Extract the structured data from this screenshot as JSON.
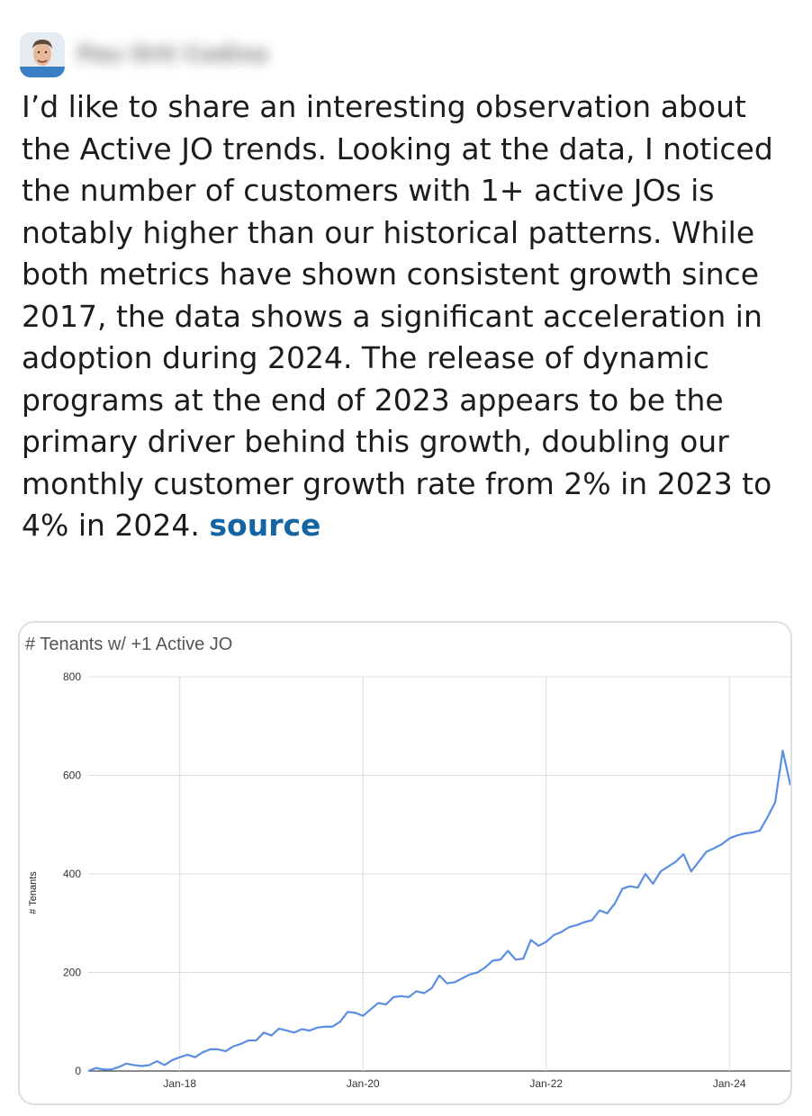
{
  "post": {
    "author_name": "Pau Orti Codina",
    "text_before_link": "I’d like to share an interesting observation about the Active JO trends. Looking at the data, I noticed the number of customers with 1+ active JOs is notably higher than our historical patterns. While both metrics have shown consistent growth since 2017, the data shows a significant acceleration in adoption during 2024. The release of dynamic programs at the end of 2023 appears to be the primary driver behind this growth, doubling our monthly customer growth rate from 2% in 2023 to 4% in 2024. ",
    "link_text": "source"
  },
  "colors": {
    "line": "#5b8ee2",
    "link": "#1264a3",
    "text": "#1d1c1d"
  },
  "chart_data": {
    "type": "line",
    "title": "# Tenants w/ +1 Active JO",
    "xlabel": "",
    "ylabel": "# Tenants",
    "ylim": [
      0,
      800
    ],
    "yticks": [
      0,
      200,
      400,
      600,
      800
    ],
    "xticks": [
      {
        "label": "Jan-18",
        "month": 12
      },
      {
        "label": "Jan-20",
        "month": 36
      },
      {
        "label": "Jan-22",
        "month": 60
      },
      {
        "label": "Jan-24",
        "month": 84
      }
    ],
    "grid": true,
    "x_start": "Jan-17",
    "series": [
      {
        "values": [
          0,
          6,
          3,
          3,
          8,
          15,
          12,
          10,
          12,
          20,
          12,
          22,
          28,
          33,
          28,
          38,
          44,
          44,
          40,
          50,
          55,
          62,
          62,
          78,
          72,
          86,
          82,
          78,
          85,
          82,
          88,
          90,
          90,
          100,
          120,
          118,
          112,
          125,
          138,
          135,
          150,
          152,
          150,
          162,
          158,
          168,
          194,
          178,
          180,
          188,
          196,
          200,
          210,
          224,
          226,
          244,
          226,
          228,
          266,
          254,
          262,
          276,
          282,
          292,
          296,
          302,
          306,
          326,
          320,
          340,
          370,
          375,
          372,
          400,
          380,
          405,
          415,
          425,
          440,
          405,
          425,
          445,
          452,
          460,
          472,
          478,
          482,
          484,
          488,
          515,
          545,
          650,
          580
        ]
      }
    ]
  }
}
